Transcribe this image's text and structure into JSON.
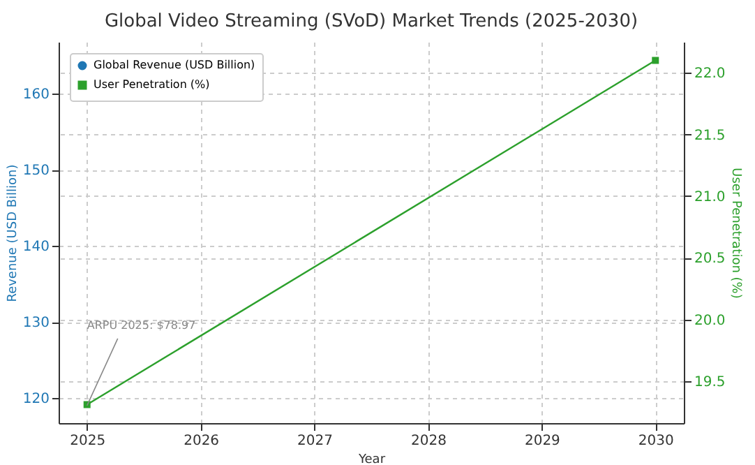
{
  "chart_data": {
    "type": "line",
    "title": "Global Video Streaming (SVoD) Market Trends (2025-2030)",
    "xlabel": "Year",
    "ylabel": "Revenue (USD Billion)",
    "y2label": "User Penetration (%)",
    "x": [
      2025,
      2030
    ],
    "series": [
      {
        "name": "Global Revenue (USD Billion)",
        "color": "#1f77b4",
        "values": [
          null,
          null
        ],
        "marker": "circle"
      },
      {
        "name": "User Penetration (%)",
        "color": "#2ca02c",
        "values": [
          19.31,
          22.1
        ],
        "axis": "y2",
        "marker": "square"
      }
    ],
    "xlim": [
      2024.75,
      2030.25
    ],
    "xticks": [
      2025,
      2026,
      2027,
      2028,
      2029,
      2030
    ],
    "ylim": [
      116.7,
      166.8
    ],
    "yticks": [
      120,
      130,
      140,
      150,
      160
    ],
    "y2lim": [
      19.16,
      22.25
    ],
    "y2ticks": [
      19.5,
      {
        "value": 20,
        "label": "20.0"
      },
      20.5,
      {
        "value": 21,
        "label": "21.0"
      },
      21.5,
      {
        "value": 22,
        "label": "22.0"
      }
    ],
    "annotations": [
      {
        "text": "ARPU 2025: $78.97",
        "x": 2025,
        "y": 119.0
      }
    ],
    "grid": true,
    "legend": "top left",
    "line_style": "solid"
  }
}
